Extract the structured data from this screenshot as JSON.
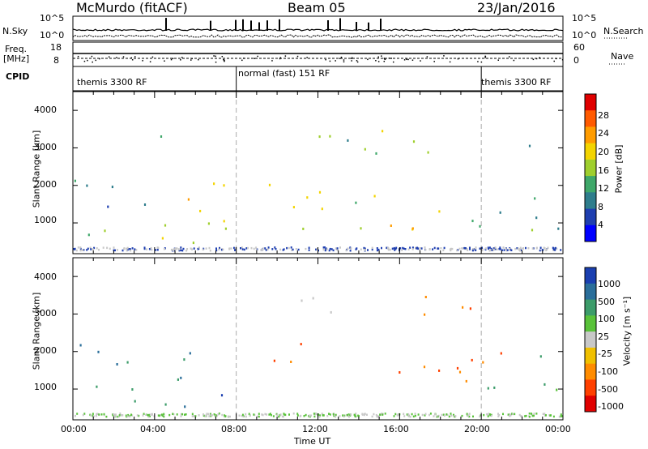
{
  "header": {
    "station": "McMurdo (fitACF)",
    "beam": "Beam 05",
    "date": "23/Jan/2016"
  },
  "status": {
    "nsky_label": "N.Sky",
    "nsearch_label": "N.Search",
    "nsky_ticks": [
      "10^5",
      "10^0"
    ],
    "nsearch_ticks": [
      "10^5",
      "10^0"
    ],
    "freq_label": "Freq.",
    "freq_unit": "[MHz]",
    "freq_ticks": [
      "18",
      "8"
    ],
    "nave_label": "Nave",
    "nave_ticks": [
      "60",
      "0"
    ],
    "cpid_label": "CPID",
    "modes": [
      "themis 3300 RF",
      "normal (fast) 151 RF",
      "themis 3300 RF"
    ]
  },
  "chart_data": [
    {
      "type": "heatmap",
      "title": "",
      "ylabel": "Slant Range [km]",
      "ylim": [
        180,
        4500
      ],
      "yticks": [
        "4000",
        "3000",
        "2000",
        "1000"
      ],
      "xlabel": "",
      "xlim": [
        "00:00",
        "24:00"
      ],
      "colorbar_label": "Power [dB]",
      "colorbar_ticks": [
        "28",
        "24",
        "20",
        "16",
        "12",
        "8",
        "4"
      ],
      "colorbar_colors": [
        "#e00000",
        "#ff5a00",
        "#ff9c00",
        "#f3d400",
        "#9fcf2e",
        "#3fa86a",
        "#2e7d8c",
        "#1f3fb0",
        "#0000ff"
      ],
      "mode_change_times": [
        "08:00",
        "20:00"
      ],
      "scatter_regions": [
        {
          "t_start": "00:00",
          "t_end": "03:30",
          "range_min": 600,
          "range_max": 2300,
          "level": 10
        },
        {
          "t_start": "02:30",
          "t_end": "04:30",
          "range_min": 3000,
          "range_max": 3500,
          "level": 8
        },
        {
          "t_start": "04:00",
          "t_end": "08:00",
          "range_min": 500,
          "range_max": 2600,
          "level": 18
        },
        {
          "t_start": "06:30",
          "t_end": "07:30",
          "range_min": 1500,
          "range_max": 2800,
          "level": 20
        },
        {
          "t_start": "09:00",
          "t_end": "11:30",
          "range_min": 600,
          "range_max": 2100,
          "level": 16
        },
        {
          "t_start": "11:00",
          "t_end": "14:30",
          "range_min": 2800,
          "range_max": 3500,
          "level": 14
        },
        {
          "t_start": "12:00",
          "t_end": "17:00",
          "range_min": 800,
          "range_max": 1900,
          "level": 16
        },
        {
          "t_start": "15:30",
          "t_end": "18:30",
          "range_min": 600,
          "range_max": 1500,
          "level": 22
        },
        {
          "t_start": "14:00",
          "t_end": "20:00",
          "range_min": 2800,
          "range_max": 3500,
          "level": 14
        },
        {
          "t_start": "19:30",
          "t_end": "24:00",
          "range_min": 800,
          "range_max": 2100,
          "level": 10
        },
        {
          "t_start": "22:00",
          "t_end": "24:00",
          "range_min": 2900,
          "range_max": 3400,
          "level": 8
        }
      ]
    },
    {
      "type": "heatmap",
      "title": "",
      "ylabel": "Slant Range [km]",
      "ylim": [
        180,
        4500
      ],
      "yticks": [
        "4000",
        "3000",
        "2000",
        "1000"
      ],
      "xlabel": "Time UT",
      "xlim": [
        "00:00",
        "24:00"
      ],
      "xticks": [
        "00:00",
        "04:00",
        "08:00",
        "12:00",
        "16:00",
        "20:00",
        "00:00"
      ],
      "colorbar_label": "Velocity [m s⁻¹]",
      "colorbar_ticks": [
        "1000",
        "500",
        "100",
        "25",
        "-25",
        "-100",
        "-500",
        "-1000"
      ],
      "colorbar_colors": [
        "#1a3fb0",
        "#2a6e9a",
        "#3c9c6a",
        "#59c23a",
        "#c8c8c8",
        "#f0c000",
        "#ff8c00",
        "#ff4000",
        "#e00000"
      ],
      "scatter_regions": [
        {
          "t_start": "00:00",
          "t_end": "03:30",
          "range_min": 600,
          "range_max": 2300,
          "velocity": 300
        },
        {
          "t_start": "04:00",
          "t_end": "07:00",
          "range_min": 500,
          "range_max": 2200,
          "velocity": 300
        },
        {
          "t_start": "06:30",
          "t_end": "07:30",
          "range_min": 600,
          "range_max": 1600,
          "velocity": 1000
        },
        {
          "t_start": "09:00",
          "t_end": "12:00",
          "range_min": 1500,
          "range_max": 2400,
          "velocity": -300
        },
        {
          "t_start": "11:00",
          "t_end": "15:00",
          "range_min": 2800,
          "range_max": 3500,
          "velocity": 0
        },
        {
          "t_start": "14:00",
          "t_end": "20:00",
          "range_min": 2900,
          "range_max": 3500,
          "velocity": -300
        },
        {
          "t_start": "15:30",
          "t_end": "21:00",
          "range_min": 600,
          "range_max": 2100,
          "velocity": -300
        },
        {
          "t_start": "20:00",
          "t_end": "24:00",
          "range_min": 800,
          "range_max": 2000,
          "velocity": 100
        }
      ]
    }
  ]
}
